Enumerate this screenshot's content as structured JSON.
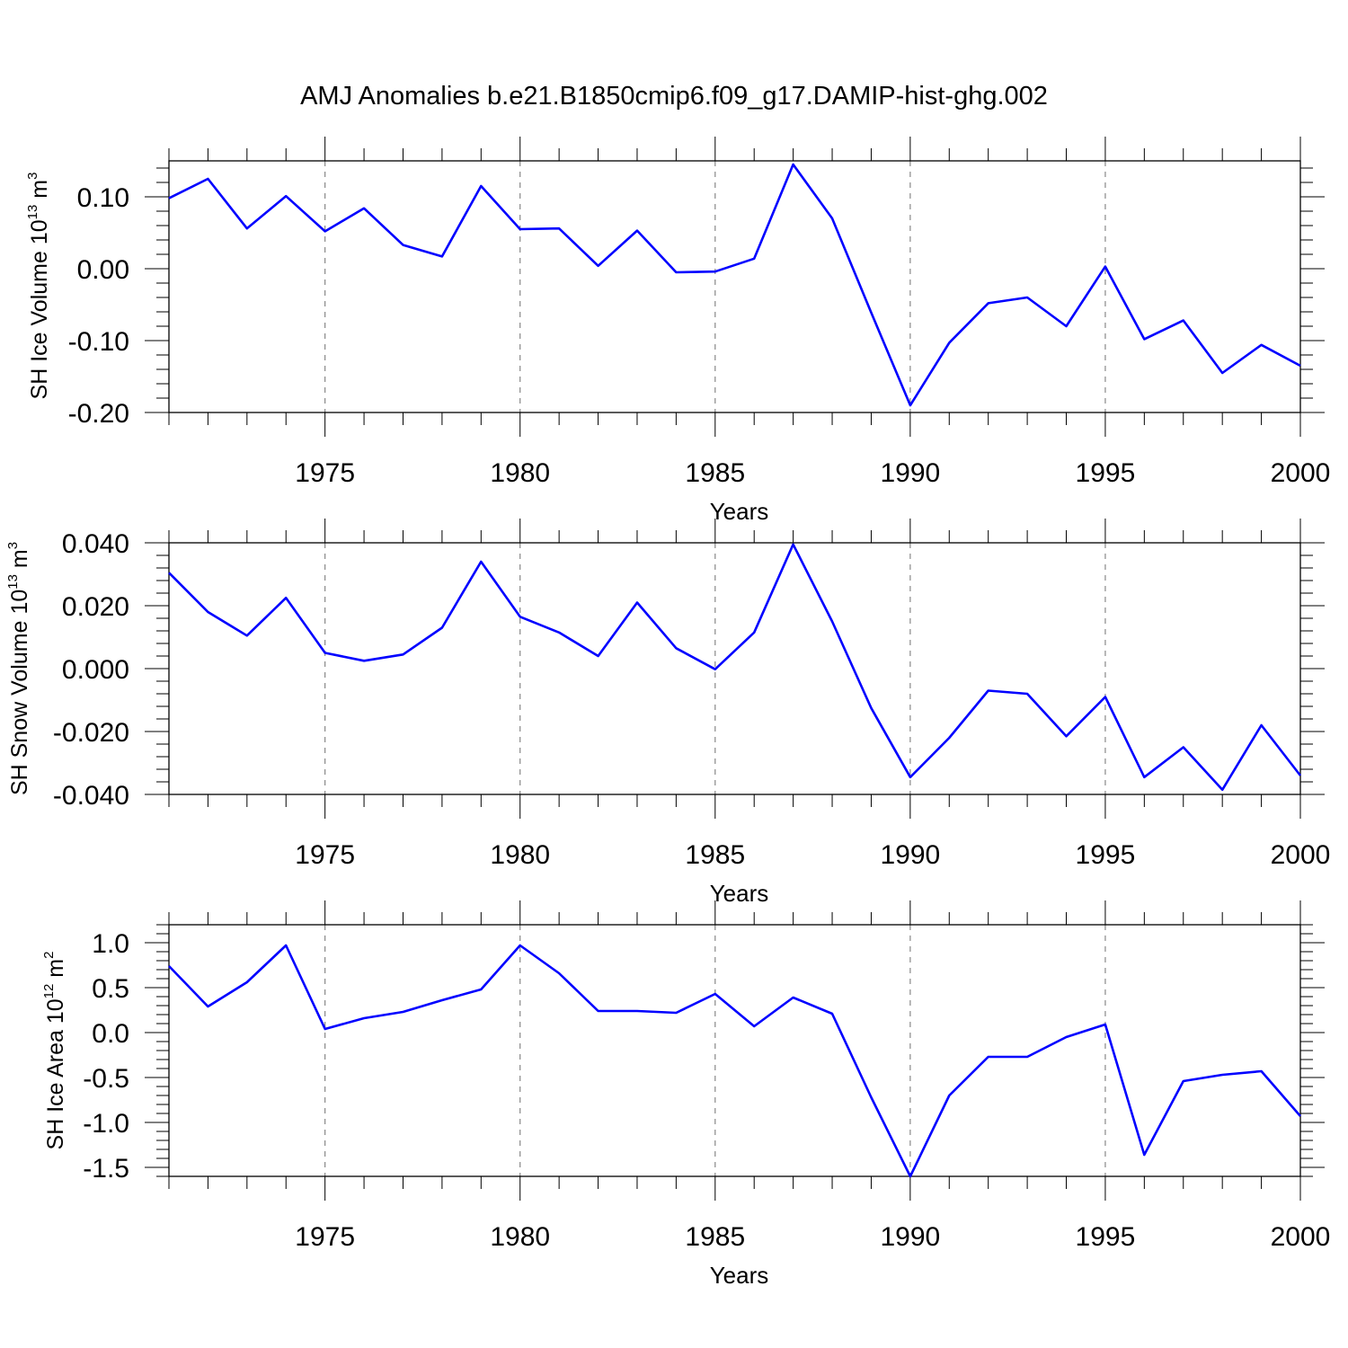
{
  "figure": {
    "title": "AMJ Anomalies b.e21.B1850cmip6.f09_g17.DAMIP-hist-ghg.002"
  },
  "chart_data": [
    {
      "type": "line",
      "xlabel": "Years",
      "ylabel": {
        "text": "SH Ice Volume 10",
        "exponent": "13",
        "unit": " m",
        "unit_exponent": "3"
      },
      "xlim": [
        1971,
        2000
      ],
      "ylim": [
        -0.2,
        0.15
      ],
      "xticks": [
        1975,
        1980,
        1985,
        1990,
        1995,
        2000
      ],
      "xtick_labels": [
        "1975",
        "1980",
        "1985",
        "1990",
        "1995",
        "2000"
      ],
      "yticks": [
        0.1,
        0.0,
        -0.1,
        -0.2
      ],
      "ytick_labels": [
        "0.10",
        "0.00",
        "-0.10",
        "-0.20"
      ],
      "grid": "vertical dashed at major x ticks",
      "line_color": "#0000ff",
      "x": [
        1971,
        1972,
        1973,
        1974,
        1975,
        1976,
        1977,
        1978,
        1979,
        1980,
        1981,
        1982,
        1983,
        1984,
        1985,
        1986,
        1987,
        1988,
        1989,
        1990,
        1991,
        1992,
        1993,
        1994,
        1995,
        1996,
        1997,
        1998,
        1999,
        2000
      ],
      "values": [
        0.098,
        0.125,
        0.056,
        0.101,
        0.052,
        0.084,
        0.033,
        0.017,
        0.115,
        0.055,
        0.056,
        0.004,
        0.053,
        -0.005,
        -0.004,
        0.014,
        0.145,
        0.07,
        -0.061,
        -0.19,
        -0.103,
        -0.048,
        -0.04,
        -0.08,
        0.003,
        -0.098,
        -0.072,
        -0.145,
        -0.106,
        -0.135
      ]
    },
    {
      "type": "line",
      "xlabel": "Years",
      "ylabel": {
        "text": "SH Snow Volume 10",
        "exponent": "13",
        "unit": " m",
        "unit_exponent": "3"
      },
      "xlim": [
        1971,
        2000
      ],
      "ylim": [
        -0.04,
        0.04
      ],
      "xticks": [
        1975,
        1980,
        1985,
        1990,
        1995,
        2000
      ],
      "xtick_labels": [
        "1975",
        "1980",
        "1985",
        "1990",
        "1995",
        "2000"
      ],
      "yticks": [
        0.04,
        0.02,
        0.0,
        -0.02,
        -0.04
      ],
      "ytick_labels": [
        "0.040",
        "0.020",
        "0.000",
        "-0.020",
        "-0.040"
      ],
      "grid": "vertical dashed at major x ticks",
      "line_color": "#0000ff",
      "x": [
        1971,
        1972,
        1973,
        1974,
        1975,
        1976,
        1977,
        1978,
        1979,
        1980,
        1981,
        1982,
        1983,
        1984,
        1985,
        1986,
        1987,
        1988,
        1989,
        1990,
        1991,
        1992,
        1993,
        1994,
        1995,
        1996,
        1997,
        1998,
        1999,
        2000
      ],
      "values": [
        0.0305,
        0.018,
        0.0105,
        0.0225,
        0.005,
        0.0025,
        0.0045,
        0.013,
        0.034,
        0.0165,
        0.0115,
        0.004,
        0.021,
        0.0065,
        -0.0002,
        0.0115,
        0.0395,
        0.015,
        -0.0125,
        -0.0345,
        -0.022,
        -0.007,
        -0.008,
        -0.0215,
        -0.009,
        -0.0345,
        -0.025,
        -0.0385,
        -0.018,
        -0.034
      ]
    },
    {
      "type": "line",
      "xlabel": "Years",
      "ylabel": {
        "text": "SH Ice Area 10",
        "exponent": "12",
        "unit": " m",
        "unit_exponent": "2"
      },
      "xlim": [
        1971,
        2000
      ],
      "ylim": [
        -1.6,
        1.2
      ],
      "xticks": [
        1975,
        1980,
        1985,
        1990,
        1995,
        2000
      ],
      "xtick_labels": [
        "1975",
        "1980",
        "1985",
        "1990",
        "1995",
        "2000"
      ],
      "yticks": [
        1.0,
        0.5,
        0.0,
        -0.5,
        -1.0,
        -1.5
      ],
      "ytick_labels": [
        "1.0",
        "0.5",
        "0.0",
        "-0.5",
        "-1.0",
        "-1.5"
      ],
      "grid": "vertical dashed at major x ticks",
      "line_color": "#0000ff",
      "x": [
        1971,
        1972,
        1973,
        1974,
        1975,
        1976,
        1977,
        1978,
        1979,
        1980,
        1981,
        1982,
        1983,
        1984,
        1985,
        1986,
        1987,
        1988,
        1989,
        1990,
        1991,
        1992,
        1993,
        1994,
        1995,
        1996,
        1997,
        1998,
        1999,
        2000
      ],
      "values": [
        0.74,
        0.29,
        0.56,
        0.97,
        0.04,
        0.16,
        0.23,
        0.36,
        0.48,
        0.97,
        0.66,
        0.24,
        0.24,
        0.22,
        0.43,
        0.07,
        0.39,
        0.21,
        -0.72,
        -1.6,
        -0.7,
        -0.27,
        -0.27,
        -0.05,
        0.09,
        -1.36,
        -0.54,
        -0.47,
        -0.43,
        -0.93
      ]
    }
  ]
}
